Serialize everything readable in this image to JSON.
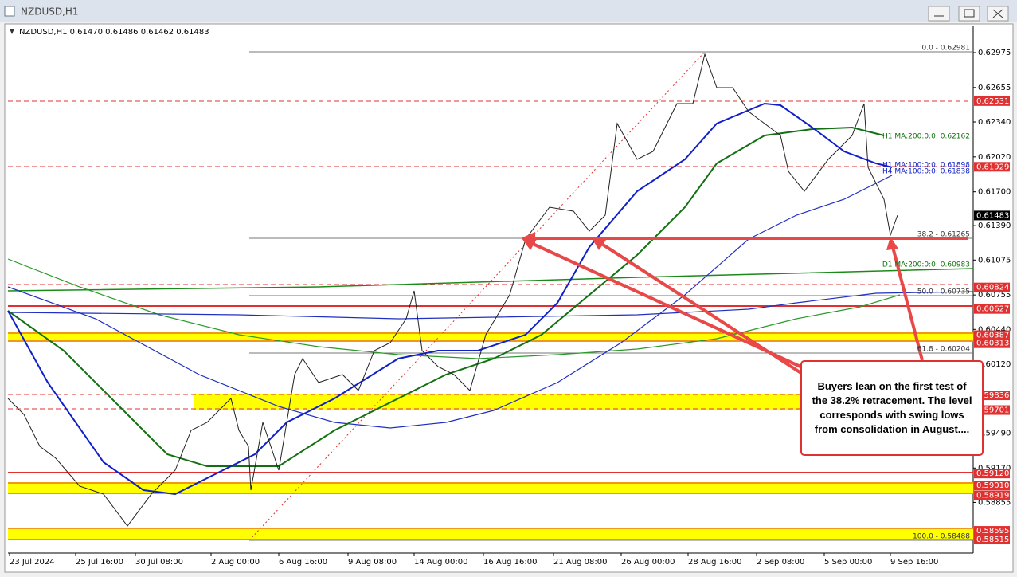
{
  "window": {
    "title": "NZDUSD,H1"
  },
  "chart": {
    "header": "NZDUSD,H1  0.61470 0.61486 0.61462 0.61483",
    "price_axis": [
      "0.62975",
      "0.62655",
      "0.62340",
      "0.62020",
      "0.61700",
      "0.61390",
      "0.61075",
      "0.60755",
      "0.60440",
      "0.60120",
      "0.59490",
      "0.59170",
      "0.58855"
    ],
    "price_tags": [
      {
        "text": "0.62531",
        "kind": "red"
      },
      {
        "text": "0.61929",
        "kind": "red"
      },
      {
        "text": "0.61483",
        "kind": "dark"
      },
      {
        "text": "0.60824",
        "kind": "red"
      },
      {
        "text": "0.60627",
        "kind": "red"
      },
      {
        "text": "0.60387",
        "kind": "red"
      },
      {
        "text": "0.60313",
        "kind": "red"
      },
      {
        "text": "0.59836",
        "kind": "red"
      },
      {
        "text": "0.59701",
        "kind": "red"
      },
      {
        "text": "0.59120",
        "kind": "red"
      },
      {
        "text": "0.59010",
        "kind": "red"
      },
      {
        "text": "0.58919",
        "kind": "red"
      },
      {
        "text": "0.58595",
        "kind": "red"
      },
      {
        "text": "0.58515",
        "kind": "red"
      }
    ],
    "time_axis": [
      "23 Jul 2024",
      "25 Jul 16:00",
      "30 Jul 08:00",
      "2 Aug 00:00",
      "6 Aug 16:00",
      "9 Aug 08:00",
      "14 Aug 00:00",
      "16 Aug 16:00",
      "21 Aug 08:00",
      "26 Aug 00:00",
      "28 Aug 16:00",
      "2 Sep 08:00",
      "5 Sep 00:00",
      "9 Sep 16:00"
    ],
    "level_labels": [
      "0.0 - 0.62981",
      "38.2 - 0.61265",
      "50.0 - 0.60735",
      "61.8 - 0.60204",
      "100.0 - 0.58488",
      "H1 MA:200:0:0: 0.62162",
      "H1 MA:100:0:0: 0.61898",
      "H4 MA:100:0:0: 0.61838",
      "D1 MA:200:0:0: 0.60983"
    ],
    "annotation": "Buyers lean on the first test of the 38.2% retracement. The level corresponds with swing lows from consolidation in August...."
  }
}
